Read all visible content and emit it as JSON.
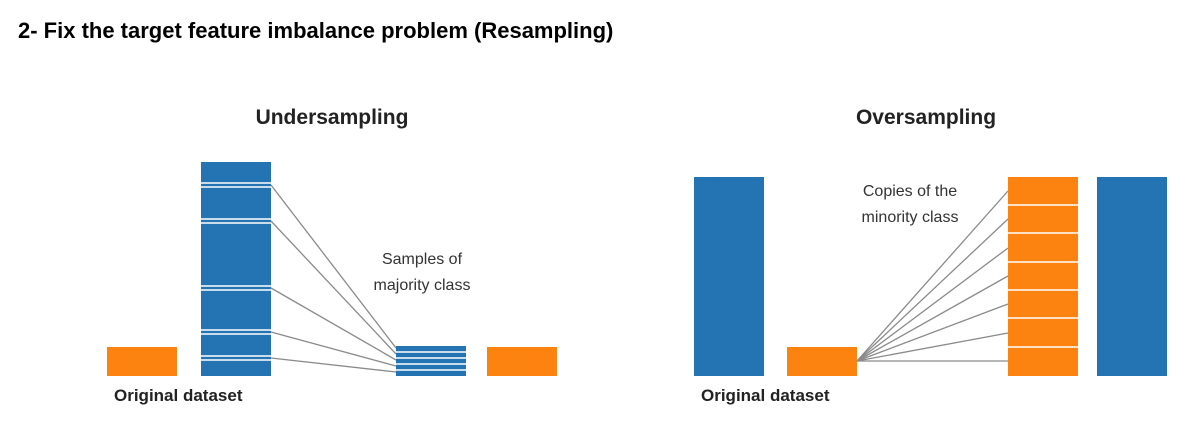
{
  "heading": "2- Fix the target feature imbalance problem (Resampling)",
  "undersampling": {
    "title": "Undersampling",
    "annotation_line1": "Samples of",
    "annotation_line2": "majority class",
    "caption": "Original dataset"
  },
  "oversampling": {
    "title": "Oversampling",
    "annotation_line1": "Copies of the",
    "annotation_line2": "minority class",
    "caption": "Original dataset"
  },
  "colors": {
    "majority": "#2473b3",
    "minority": "#fd8311",
    "connector": "#8a8a8a"
  }
}
